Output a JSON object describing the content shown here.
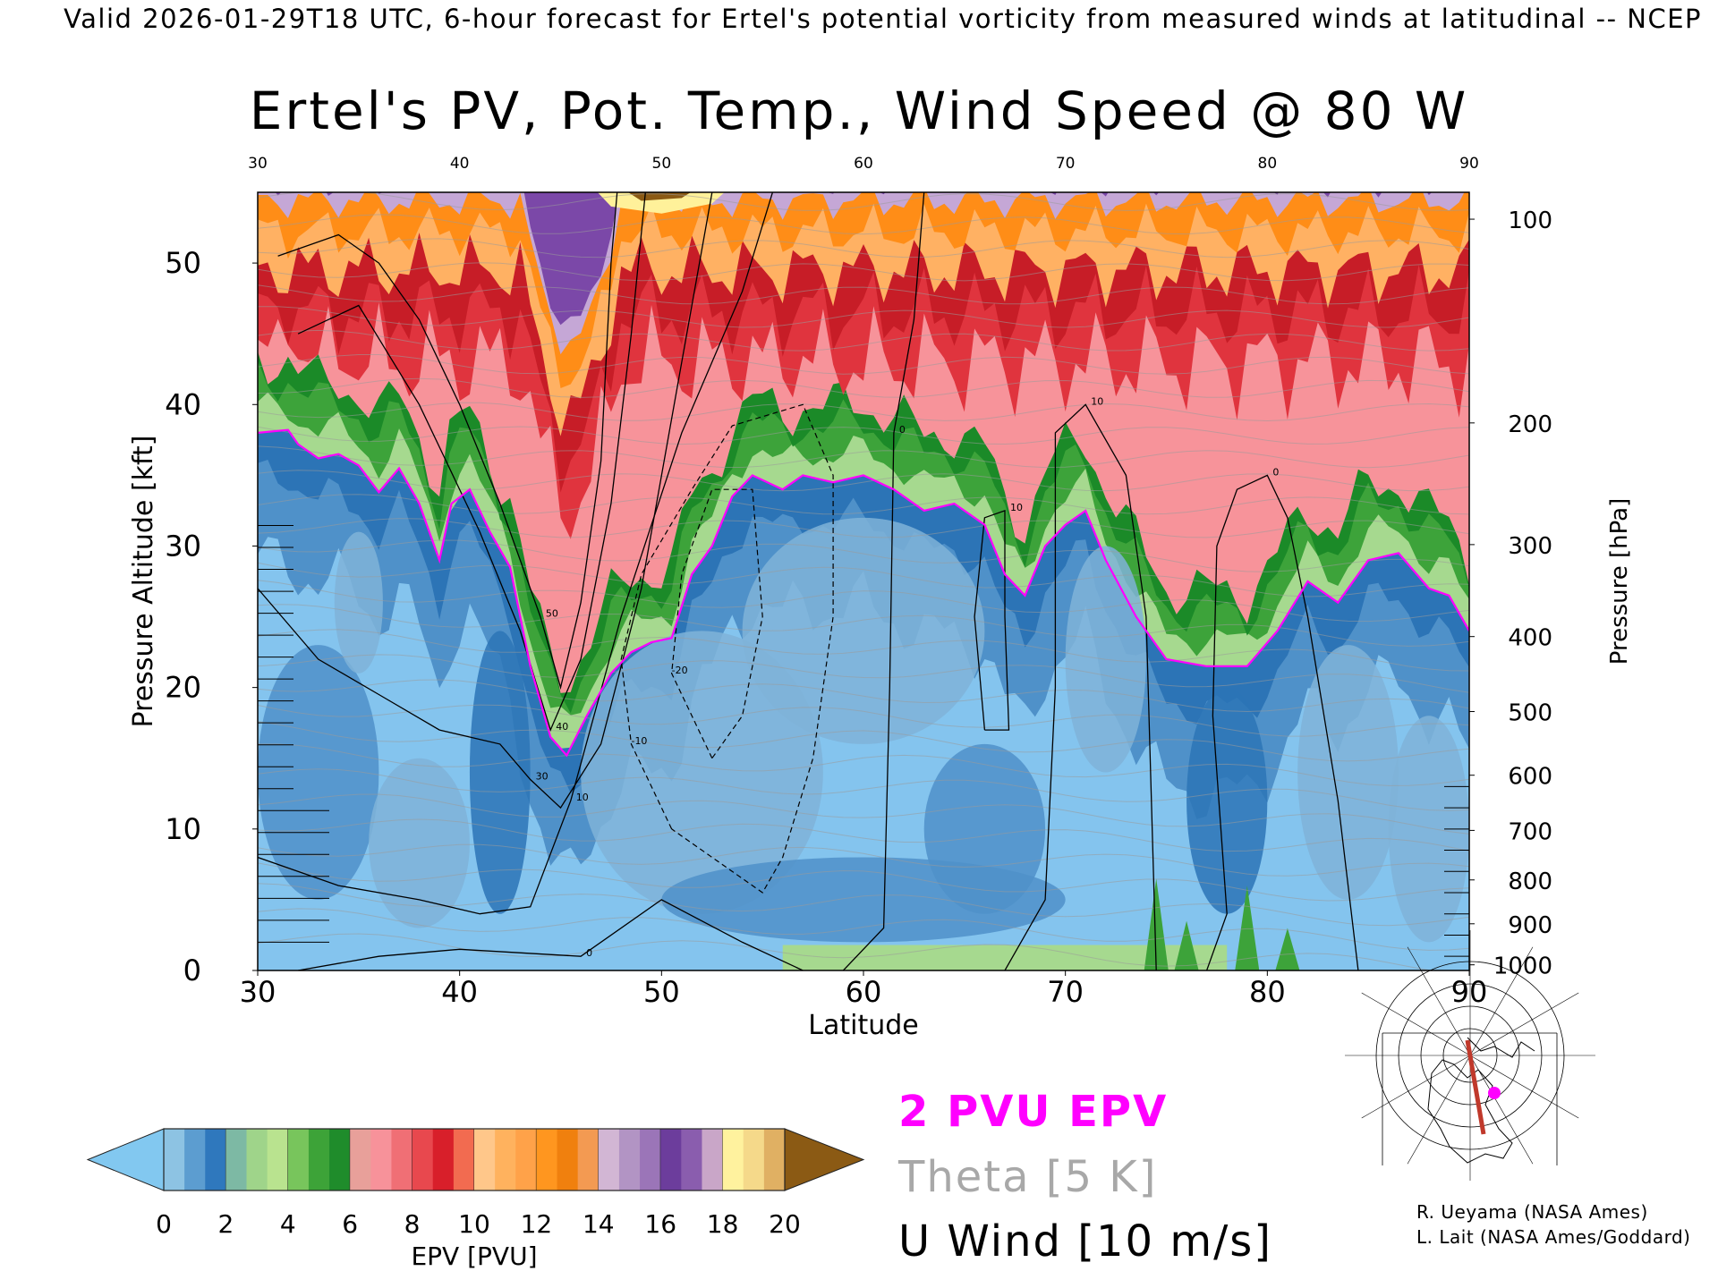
{
  "header": {
    "valid_line": "Valid 2026-01-29T18 UTC, 6-hour forecast for Ertel's potential vorticity from measured winds at latitudinal -- NCEP"
  },
  "chart_data": {
    "type": "heatmap",
    "title": "Ertel's PV, Pot. Temp., Wind Speed @ 80 W",
    "xlabel": "Latitude",
    "ylabel": "Pressure Altitude [kft]",
    "y2label": "Pressure [hPa]",
    "xlim": [
      30,
      90
    ],
    "ylim": [
      0,
      55
    ],
    "x_ticks": [
      "30",
      "40",
      "50",
      "60",
      "70",
      "80",
      "90"
    ],
    "y_ticks": [
      "0",
      "10",
      "20",
      "30",
      "40",
      "50"
    ],
    "pressure_ticks": [
      {
        "label": "100",
        "kft": 53.1
      },
      {
        "label": "200",
        "kft": 38.7
      },
      {
        "label": "300",
        "kft": 30.1
      },
      {
        "label": "400",
        "kft": 23.6
      },
      {
        "label": "500",
        "kft": 18.3
      },
      {
        "label": "600",
        "kft": 13.8
      },
      {
        "label": "700",
        "kft": 9.9
      },
      {
        "label": "800",
        "kft": 6.4
      },
      {
        "label": "900",
        "kft": 3.3
      },
      {
        "label": "1000",
        "kft": 0.4
      }
    ],
    "two_pvu_contour": [
      {
        "lat": 30,
        "kft": 38.0
      },
      {
        "lat": 31.5,
        "kft": 38.2
      },
      {
        "lat": 32,
        "kft": 37.2
      },
      {
        "lat": 33,
        "kft": 36.2
      },
      {
        "lat": 34,
        "kft": 36.5
      },
      {
        "lat": 35,
        "kft": 35.7
      },
      {
        "lat": 36,
        "kft": 33.8
      },
      {
        "lat": 37,
        "kft": 35.5
      },
      {
        "lat": 38,
        "kft": 33.0
      },
      {
        "lat": 39,
        "kft": 29.0
      },
      {
        "lat": 39.6,
        "kft": 33.0
      },
      {
        "lat": 40.5,
        "kft": 34.0
      },
      {
        "lat": 41.5,
        "kft": 31.0
      },
      {
        "lat": 42.5,
        "kft": 28.5
      },
      {
        "lat": 43.5,
        "kft": 21.5
      },
      {
        "lat": 44.5,
        "kft": 16.5
      },
      {
        "lat": 45.3,
        "kft": 15.2
      },
      {
        "lat": 46.3,
        "kft": 18.0
      },
      {
        "lat": 47.5,
        "kft": 21.0
      },
      {
        "lat": 48.5,
        "kft": 22.5
      },
      {
        "lat": 49.5,
        "kft": 23.2
      },
      {
        "lat": 50.5,
        "kft": 23.5
      },
      {
        "lat": 51.5,
        "kft": 28.0
      },
      {
        "lat": 52.5,
        "kft": 30.0
      },
      {
        "lat": 53.5,
        "kft": 33.5
      },
      {
        "lat": 54.5,
        "kft": 35.0
      },
      {
        "lat": 56,
        "kft": 34.0
      },
      {
        "lat": 57,
        "kft": 35.0
      },
      {
        "lat": 58.5,
        "kft": 34.5
      },
      {
        "lat": 60,
        "kft": 35.0
      },
      {
        "lat": 61.5,
        "kft": 34.0
      },
      {
        "lat": 63,
        "kft": 32.5
      },
      {
        "lat": 64.5,
        "kft": 33.0
      },
      {
        "lat": 66,
        "kft": 31.5
      },
      {
        "lat": 67,
        "kft": 28.0
      },
      {
        "lat": 68,
        "kft": 26.5
      },
      {
        "lat": 69,
        "kft": 30.0
      },
      {
        "lat": 70,
        "kft": 31.5
      },
      {
        "lat": 71,
        "kft": 32.5
      },
      {
        "lat": 72,
        "kft": 29.0
      },
      {
        "lat": 73.5,
        "kft": 25.0
      },
      {
        "lat": 75,
        "kft": 22.0
      },
      {
        "lat": 77,
        "kft": 21.5
      },
      {
        "lat": 79,
        "kft": 21.5
      },
      {
        "lat": 80.5,
        "kft": 24.0
      },
      {
        "lat": 82,
        "kft": 27.5
      },
      {
        "lat": 83.5,
        "kft": 26.0
      },
      {
        "lat": 85,
        "kft": 29.0
      },
      {
        "lat": 86.5,
        "kft": 29.5
      },
      {
        "lat": 88,
        "kft": 27.0
      },
      {
        "lat": 89,
        "kft": 26.5
      },
      {
        "lat": 90,
        "kft": 24.0
      }
    ],
    "u_wind_contours": [
      {
        "label": "50",
        "points": [
          {
            "lat": 31,
            "kft": 50.5
          },
          {
            "lat": 34,
            "kft": 52.0
          },
          {
            "lat": 36,
            "kft": 50.0
          },
          {
            "lat": 38,
            "kft": 46.0
          },
          {
            "lat": 40,
            "kft": 40.0
          },
          {
            "lat": 42,
            "kft": 33.0
          },
          {
            "lat": 44,
            "kft": 25.0
          },
          {
            "lat": 45,
            "kft": 20.0
          },
          {
            "lat": 46,
            "kft": 26.0
          },
          {
            "lat": 47,
            "kft": 36.0
          },
          {
            "lat": 47.5,
            "kft": 50.0
          },
          {
            "lat": 47.8,
            "kft": 55.0
          }
        ]
      },
      {
        "label": "40",
        "points": [
          {
            "lat": 32,
            "kft": 45.0
          },
          {
            "lat": 35,
            "kft": 47.0
          },
          {
            "lat": 38,
            "kft": 40.0
          },
          {
            "lat": 41,
            "kft": 31.0
          },
          {
            "lat": 43,
            "kft": 24.0
          },
          {
            "lat": 44.5,
            "kft": 17.0
          },
          {
            "lat": 46,
            "kft": 22.0
          },
          {
            "lat": 47.5,
            "kft": 33.0
          },
          {
            "lat": 48.5,
            "kft": 45.0
          },
          {
            "lat": 49.2,
            "kft": 55.0
          }
        ]
      },
      {
        "label": "30",
        "points": [
          {
            "lat": 30,
            "kft": 27.0
          },
          {
            "lat": 33,
            "kft": 22.0
          },
          {
            "lat": 36,
            "kft": 19.5
          },
          {
            "lat": 39,
            "kft": 17.0
          },
          {
            "lat": 42,
            "kft": 16.0
          },
          {
            "lat": 43.5,
            "kft": 13.5
          },
          {
            "lat": 45,
            "kft": 11.5
          },
          {
            "lat": 47,
            "kft": 16.0
          },
          {
            "lat": 49,
            "kft": 27.0
          },
          {
            "lat": 51,
            "kft": 43.0
          },
          {
            "lat": 52.5,
            "kft": 55.0
          }
        ]
      },
      {
        "label": "10",
        "points": [
          {
            "lat": 30,
            "kft": 8.0
          },
          {
            "lat": 34,
            "kft": 6.0
          },
          {
            "lat": 38,
            "kft": 5.0
          },
          {
            "lat": 41,
            "kft": 4.0
          },
          {
            "lat": 43.5,
            "kft": 4.5
          },
          {
            "lat": 45.5,
            "kft": 12.0
          },
          {
            "lat": 48,
            "kft": 25.0
          },
          {
            "lat": 51,
            "kft": 38.0
          },
          {
            "lat": 54,
            "kft": 48.0
          },
          {
            "lat": 55.5,
            "kft": 55.0
          }
        ]
      },
      {
        "label": "0",
        "points": [
          {
            "lat": 32,
            "kft": 0.0
          },
          {
            "lat": 36,
            "kft": 1.0
          },
          {
            "lat": 40,
            "kft": 1.5
          },
          {
            "lat": 46,
            "kft": 1.0
          },
          {
            "lat": 50,
            "kft": 5.0
          },
          {
            "lat": 54,
            "kft": 2.0
          },
          {
            "lat": 57,
            "kft": 0.0
          }
        ]
      },
      {
        "label": "0",
        "points": [
          {
            "lat": 59,
            "kft": 0.0
          },
          {
            "lat": 61,
            "kft": 3.0
          },
          {
            "lat": 61.3,
            "kft": 20.0
          },
          {
            "lat": 61.5,
            "kft": 38.0
          },
          {
            "lat": 62.5,
            "kft": 46.0
          },
          {
            "lat": 63,
            "kft": 55.0
          }
        ]
      },
      {
        "label": "10",
        "points": [
          {
            "lat": 66,
            "kft": 17.0
          },
          {
            "lat": 65.5,
            "kft": 25.0
          },
          {
            "lat": 66,
            "kft": 32.0
          },
          {
            "lat": 67,
            "kft": 32.5
          },
          {
            "lat": 67,
            "kft": 25.0
          },
          {
            "lat": 67.2,
            "kft": 17.0
          },
          {
            "lat": 66,
            "kft": 17.0
          }
        ]
      },
      {
        "label": "10",
        "points": [
          {
            "lat": 67,
            "kft": 0.0
          },
          {
            "lat": 69,
            "kft": 5.0
          },
          {
            "lat": 69.5,
            "kft": 20.0
          },
          {
            "lat": 69.5,
            "kft": 38.0
          },
          {
            "lat": 71,
            "kft": 40.0
          },
          {
            "lat": 73,
            "kft": 35.0
          },
          {
            "lat": 74,
            "kft": 25.0
          },
          {
            "lat": 74.5,
            "kft": 0.0
          }
        ]
      },
      {
        "label": "0",
        "points": [
          {
            "lat": 77,
            "kft": 0.0
          },
          {
            "lat": 78,
            "kft": 4.0
          },
          {
            "lat": 77.3,
            "kft": 18.0
          },
          {
            "lat": 77.5,
            "kft": 30.0
          },
          {
            "lat": 78.5,
            "kft": 34.0
          },
          {
            "lat": 80,
            "kft": 35.0
          },
          {
            "lat": 81,
            "kft": 32.0
          },
          {
            "lat": 82,
            "kft": 25.0
          },
          {
            "lat": 83.5,
            "kft": 12.0
          },
          {
            "lat": 84.5,
            "kft": 0.0
          }
        ]
      }
    ],
    "easterly_dashed": [
      {
        "label": "-10",
        "points": [
          {
            "lat": 50.5,
            "kft": 10.0
          },
          {
            "lat": 48.5,
            "kft": 16.0
          },
          {
            "lat": 48.0,
            "kft": 22.0
          },
          {
            "lat": 49.0,
            "kft": 28.0
          },
          {
            "lat": 51.5,
            "kft": 34.0
          },
          {
            "lat": 53.5,
            "kft": 38.5
          },
          {
            "lat": 57,
            "kft": 40.0
          },
          {
            "lat": 58.5,
            "kft": 35.0
          },
          {
            "lat": 58.5,
            "kft": 25.0
          },
          {
            "lat": 57.5,
            "kft": 15.0
          },
          {
            "lat": 56,
            "kft": 8.0
          },
          {
            "lat": 55,
            "kft": 5.5
          },
          {
            "lat": 52.5,
            "kft": 8.0
          },
          {
            "lat": 50.5,
            "kft": 10.0
          }
        ]
      },
      {
        "label": "-20",
        "points": [
          {
            "lat": 52.5,
            "kft": 15.0
          },
          {
            "lat": 50.5,
            "kft": 21.0
          },
          {
            "lat": 51.0,
            "kft": 28.0
          },
          {
            "lat": 52.5,
            "kft": 34.0
          },
          {
            "lat": 54.5,
            "kft": 34.0
          },
          {
            "lat": 55.0,
            "kft": 25.0
          },
          {
            "lat": 54.0,
            "kft": 18.0
          },
          {
            "lat": 52.5,
            "kft": 15.0
          }
        ]
      }
    ],
    "colorbar": {
      "label": "EPV [PVU]",
      "ticks": [
        "0",
        "2",
        "4",
        "6",
        "8",
        "10",
        "12",
        "14",
        "16",
        "18",
        "20"
      ],
      "intervals": [
        {
          "from": 0,
          "to": 2,
          "colors": [
            "#8dc3e3",
            "#5c9dd0",
            "#2f78bd"
          ]
        },
        {
          "from": 2,
          "to": 4,
          "colors": [
            "#7db9a4",
            "#9fd48a",
            "#b9e38f"
          ]
        },
        {
          "from": 4,
          "to": 6,
          "colors": [
            "#78c55c",
            "#3da338",
            "#1f8c2b"
          ]
        },
        {
          "from": 6,
          "to": 8,
          "colors": [
            "#e8a09a",
            "#f7929a",
            "#f06f75"
          ]
        },
        {
          "from": 8,
          "to": 10,
          "colors": [
            "#e8484e",
            "#d81f2a",
            "#f26b50"
          ]
        },
        {
          "from": 10,
          "to": 12,
          "colors": [
            "#ffc78a",
            "#ffb25e",
            "#ffa249"
          ]
        },
        {
          "from": 12,
          "to": 14,
          "colors": [
            "#ff961f",
            "#f0800e",
            "#f39a52"
          ]
        },
        {
          "from": 14,
          "to": 16,
          "colors": [
            "#d2b6d4",
            "#b294c4",
            "#9b75b8"
          ]
        },
        {
          "from": 16,
          "to": 18,
          "colors": [
            "#6c3d9c",
            "#8a5dae",
            "#c9a6c8"
          ]
        },
        {
          "from": 18,
          "to": 20,
          "colors": [
            "#fff29e",
            "#f5d98a",
            "#e0b063"
          ]
        }
      ],
      "under_color": "#82c8f0",
      "over_color": "#8b5a14"
    },
    "epv_colors": {
      "sky_blue": "#84c4ee",
      "light_blue": "#7fb3d8",
      "mid_blue": "#4f91c9",
      "dark_blue": "#2c74b6",
      "light_green": "#a6d98f",
      "green": "#3da33a",
      "dark_green": "#1b8a28",
      "pink": "#f7939a",
      "red": "#e0343e",
      "dark_red": "#c71d27",
      "light_orange": "#ffb163",
      "orange": "#ff8d17",
      "lavender": "#c5a7d6",
      "purple": "#7b48a8",
      "yellow": "#fff19a",
      "brown": "#8b5a14",
      "magenta": "#ff00ff",
      "theta_gray": "#9b9b9b"
    }
  },
  "legend": {
    "pvu_label": "2 PVU EPV",
    "theta_label": "Theta [5 K]",
    "wind_label": "U Wind [10 m/s]"
  },
  "credits": {
    "line1": "R. Ueyama (NASA Ames)",
    "line2": "L. Lait (NASA Ames/Goddard)"
  },
  "inset_map": {
    "marker_color": "#ff00ff",
    "track_color": "#c0392b"
  }
}
